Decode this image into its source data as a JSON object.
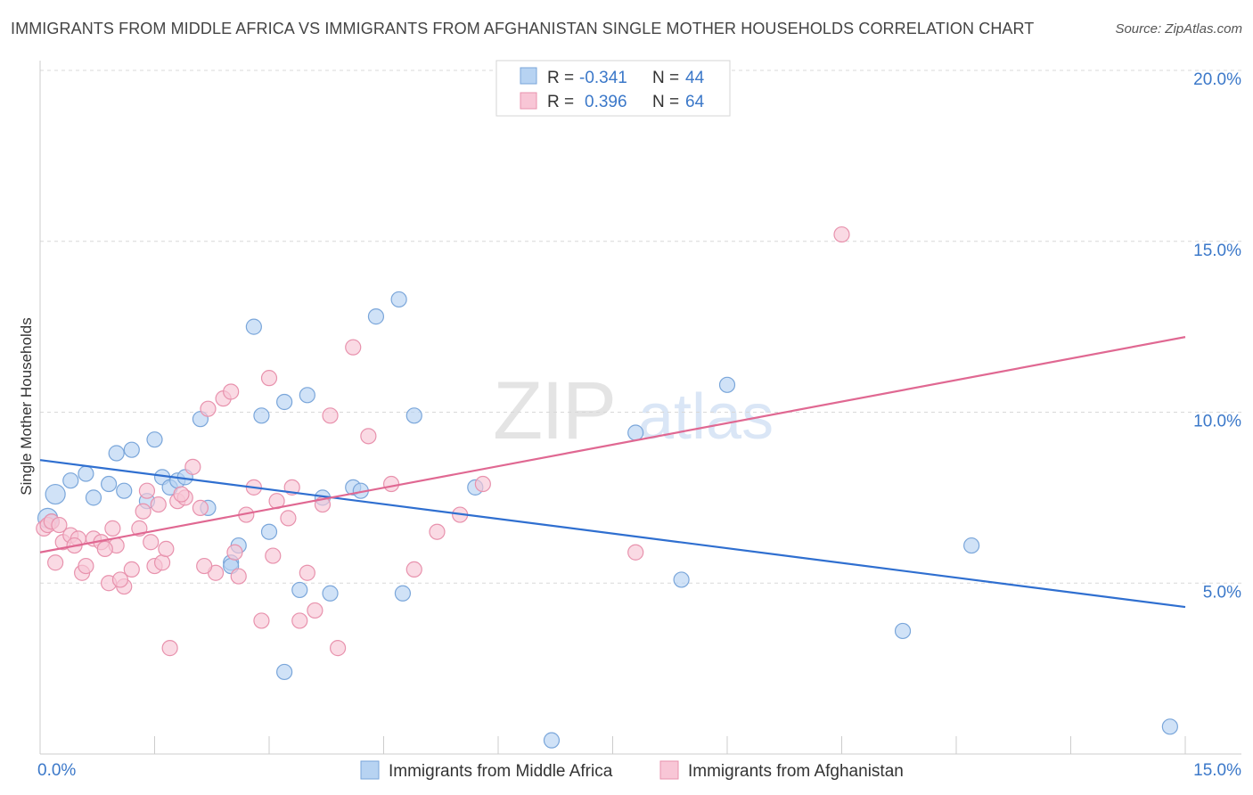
{
  "title": "IMMIGRANTS FROM MIDDLE AFRICA VS IMMIGRANTS FROM AFGHANISTAN SINGLE MOTHER HOUSEHOLDS CORRELATION CHART",
  "source": "Source: ZipAtlas.com",
  "colors": {
    "blue_fill": "#b7d3f2",
    "blue_stroke": "#7aa6da",
    "blue_line": "#2f6fd0",
    "pink_fill": "#f8c6d6",
    "pink_stroke": "#e892ad",
    "pink_line": "#e06892",
    "grid": "#d8d8d8",
    "axis": "#cccccc",
    "tick_text": "#3b78c9"
  },
  "legend": {
    "rows": [
      {
        "r_label": "R =",
        "r_value": "-0.341",
        "n_label": "N =",
        "n_value": "44"
      },
      {
        "r_label": "R =",
        "r_value": "0.396",
        "n_label": "N =",
        "n_value": "64"
      }
    ]
  },
  "watermark": {
    "zip": "ZIP",
    "atlas": "atlas"
  },
  "chart_data": {
    "type": "scatter",
    "title": "IMMIGRANTS FROM MIDDLE AFRICA VS IMMIGRANTS FROM AFGHANISTAN SINGLE MOTHER HOUSEHOLDS CORRELATION CHART",
    "xlabel": "",
    "ylabel": "Single Mother Households",
    "xlim": [
      0,
      15
    ],
    "ylim": [
      0,
      20
    ],
    "x_tick_labels": [
      "0.0%",
      "15.0%"
    ],
    "y_ticks": [
      5,
      10,
      15,
      20
    ],
    "y_tick_labels": [
      "5.0%",
      "10.0%",
      "15.0%",
      "20.0%"
    ],
    "grid": true,
    "legend_position": "top-center",
    "series": [
      {
        "name": "Immigrants from Middle Africa",
        "color": "#b7d3f2",
        "trend": {
          "x": [
            0,
            15
          ],
          "y": [
            8.6,
            4.3
          ]
        },
        "points": [
          [
            0.1,
            6.9
          ],
          [
            0.2,
            7.6
          ],
          [
            0.4,
            8.0
          ],
          [
            0.6,
            8.2
          ],
          [
            0.7,
            7.5
          ],
          [
            0.9,
            7.9
          ],
          [
            1.0,
            8.8
          ],
          [
            1.1,
            7.7
          ],
          [
            1.2,
            8.9
          ],
          [
            1.4,
            7.4
          ],
          [
            1.5,
            9.2
          ],
          [
            1.6,
            8.1
          ],
          [
            1.7,
            7.8
          ],
          [
            1.8,
            8.0
          ],
          [
            1.9,
            8.1
          ],
          [
            2.1,
            9.8
          ],
          [
            2.2,
            7.2
          ],
          [
            2.5,
            5.6
          ],
          [
            2.6,
            6.1
          ],
          [
            2.8,
            12.5
          ],
          [
            2.9,
            9.9
          ],
          [
            3.0,
            6.5
          ],
          [
            3.2,
            10.3
          ],
          [
            3.4,
            4.8
          ],
          [
            3.5,
            10.5
          ],
          [
            3.7,
            7.5
          ],
          [
            3.8,
            4.7
          ],
          [
            4.1,
            7.8
          ],
          [
            4.2,
            7.7
          ],
          [
            4.4,
            12.8
          ],
          [
            4.7,
            13.3
          ],
          [
            4.75,
            4.7
          ],
          [
            4.9,
            9.9
          ],
          [
            5.7,
            7.8
          ],
          [
            6.7,
            0.4
          ],
          [
            7.8,
            9.4
          ],
          [
            8.4,
            5.1
          ],
          [
            9.0,
            10.8
          ],
          [
            11.3,
            3.6
          ],
          [
            12.2,
            6.1
          ],
          [
            14.8,
            0.8
          ],
          [
            3.2,
            2.4
          ],
          [
            2.5,
            5.5
          ],
          [
            0.15,
            6.8
          ]
        ]
      },
      {
        "name": "Immigrants from Afghanistan",
        "color": "#f8c6d6",
        "trend": {
          "x": [
            0,
            15
          ],
          "y": [
            5.9,
            12.2
          ]
        },
        "points": [
          [
            0.05,
            6.6
          ],
          [
            0.1,
            6.7
          ],
          [
            0.15,
            6.8
          ],
          [
            0.2,
            5.6
          ],
          [
            0.3,
            6.2
          ],
          [
            0.4,
            6.4
          ],
          [
            0.5,
            6.3
          ],
          [
            0.55,
            5.3
          ],
          [
            0.6,
            5.5
          ],
          [
            0.7,
            6.3
          ],
          [
            0.8,
            6.2
          ],
          [
            0.9,
            5.0
          ],
          [
            0.95,
            6.6
          ],
          [
            1.0,
            6.1
          ],
          [
            1.1,
            4.9
          ],
          [
            1.2,
            5.4
          ],
          [
            1.3,
            6.6
          ],
          [
            1.35,
            7.1
          ],
          [
            1.4,
            7.7
          ],
          [
            1.5,
            5.5
          ],
          [
            1.55,
            7.3
          ],
          [
            1.6,
            5.6
          ],
          [
            1.65,
            6.0
          ],
          [
            1.7,
            3.1
          ],
          [
            1.8,
            7.4
          ],
          [
            1.9,
            7.5
          ],
          [
            2.0,
            8.4
          ],
          [
            2.1,
            7.2
          ],
          [
            2.2,
            10.1
          ],
          [
            2.3,
            5.3
          ],
          [
            2.4,
            10.4
          ],
          [
            2.5,
            10.6
          ],
          [
            2.6,
            5.2
          ],
          [
            2.7,
            7.0
          ],
          [
            2.8,
            7.8
          ],
          [
            2.9,
            3.9
          ],
          [
            3.0,
            11.0
          ],
          [
            3.05,
            5.8
          ],
          [
            3.1,
            7.4
          ],
          [
            3.3,
            7.8
          ],
          [
            3.4,
            3.9
          ],
          [
            3.5,
            5.3
          ],
          [
            3.6,
            4.2
          ],
          [
            3.7,
            7.3
          ],
          [
            3.8,
            9.9
          ],
          [
            3.9,
            3.1
          ],
          [
            4.1,
            11.9
          ],
          [
            4.3,
            9.3
          ],
          [
            4.6,
            7.9
          ],
          [
            4.9,
            5.4
          ],
          [
            5.2,
            6.5
          ],
          [
            5.5,
            7.0
          ],
          [
            5.8,
            7.9
          ],
          [
            7.8,
            5.9
          ],
          [
            10.5,
            15.2
          ],
          [
            0.25,
            6.7
          ],
          [
            0.45,
            6.1
          ],
          [
            1.05,
            5.1
          ],
          [
            1.85,
            7.6
          ],
          [
            2.15,
            5.5
          ],
          [
            2.55,
            5.9
          ],
          [
            3.25,
            6.9
          ],
          [
            0.85,
            6.0
          ],
          [
            1.45,
            6.2
          ]
        ]
      }
    ]
  }
}
